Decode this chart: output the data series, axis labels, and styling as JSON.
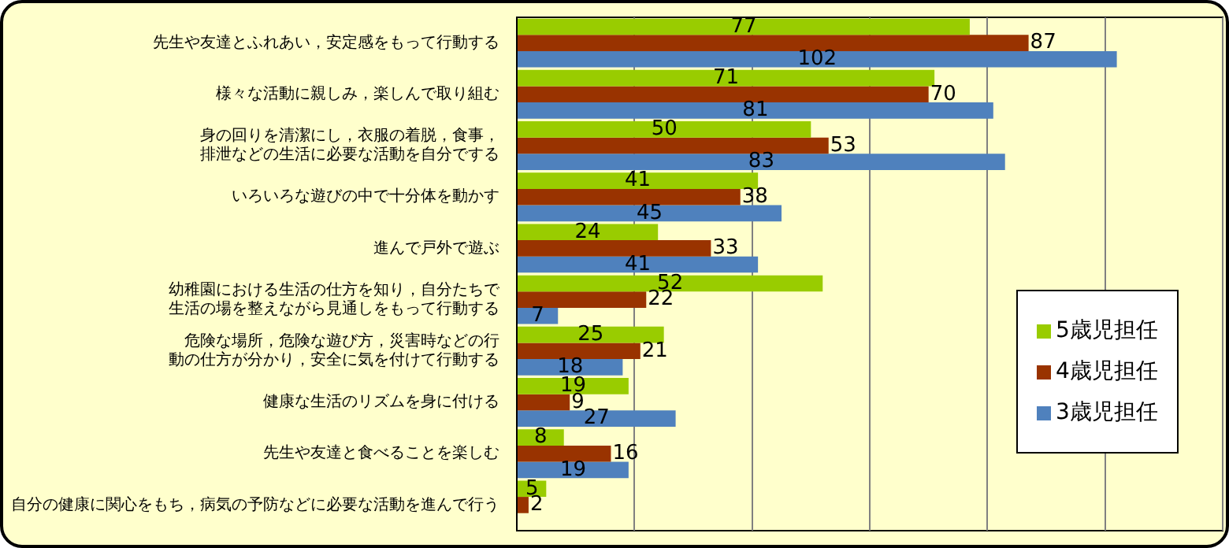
{
  "chart_data": {
    "type": "bar",
    "orientation": "horizontal",
    "categories": [
      "先生や友達とふれあい，安定感をもって行動する",
      "様々な活動に親しみ，楽しんで取り組む",
      "身の回りを清潔にし，衣服の着脱，食事，排泄などの生活に必要な活動を自分でする",
      "いろいろな遊びの中で十分体を動かす",
      "進んで戸外で遊ぶ",
      "幼稚園における生活の仕方を知り，自分たちで生活の場を整えながら見通しをもって行動する",
      "危険な場所，危険な遊び方，災害時などの行動の仕方が分かり，安全に気を付けて行動する",
      "健康な生活のリズムを身に付ける",
      "先生や友達と食べることを楽しむ",
      "自分の健康に関心をもち，病気の予防などに必要な活動を進んで行う"
    ],
    "series": [
      {
        "name": "5歳児担任",
        "color": "#99cc00",
        "values": [
          77,
          71,
          50,
          41,
          24,
          52,
          25,
          19,
          8,
          5
        ]
      },
      {
        "name": "4歳児担任",
        "color": "#993300",
        "values": [
          87,
          70,
          53,
          38,
          33,
          22,
          21,
          9,
          16,
          2
        ]
      },
      {
        "name": "3歳児担任",
        "color": "#4f81bd",
        "values": [
          102,
          81,
          83,
          45,
          41,
          7,
          18,
          27,
          19,
          null
        ]
      }
    ],
    "xlim": [
      0,
      120
    ],
    "xticks": [
      0,
      20,
      40,
      60,
      80,
      100,
      120
    ],
    "tick_labels": false,
    "grid": "x",
    "legend": "right",
    "data_labels": true
  }
}
